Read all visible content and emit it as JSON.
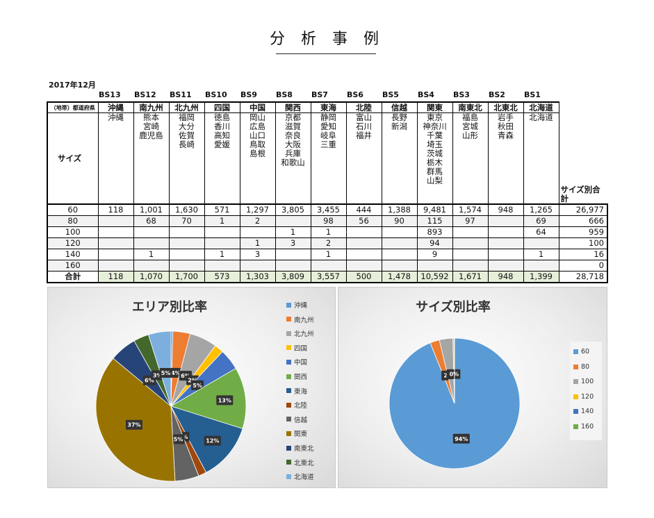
{
  "title": "分 析 事 例",
  "date": "2017年12月",
  "table": {
    "corner_label": "（地帯）都道府県",
    "size_label": "サイズ",
    "size_total_label": "サイズ別合計",
    "sum_label": "合計",
    "columns": [
      {
        "code": "BS13",
        "region": "沖縄",
        "prefectures": [
          "沖縄"
        ]
      },
      {
        "code": "BS12",
        "region": "南九州",
        "prefectures": [
          "熊本",
          "宮崎",
          "鹿児島"
        ]
      },
      {
        "code": "BS11",
        "region": "北九州",
        "prefectures": [
          "福岡",
          "大分",
          "佐賀",
          "長崎"
        ]
      },
      {
        "code": "BS10",
        "region": "四国",
        "prefectures": [
          "徳島",
          "香川",
          "高知",
          "愛媛"
        ]
      },
      {
        "code": "BS9",
        "region": "中国",
        "prefectures": [
          "岡山",
          "広島",
          "山口",
          "鳥取",
          "島根"
        ]
      },
      {
        "code": "BS8",
        "region": "関西",
        "prefectures": [
          "京都",
          "滋賀",
          "奈良",
          "大阪",
          "兵庫",
          "和歌山"
        ]
      },
      {
        "code": "BS7",
        "region": "東海",
        "prefectures": [
          "静岡",
          "愛知",
          "岐阜",
          "三重"
        ]
      },
      {
        "code": "BS6",
        "region": "北陸",
        "prefectures": [
          "富山",
          "石川",
          "福井"
        ]
      },
      {
        "code": "BS5",
        "region": "信越",
        "prefectures": [
          "長野",
          "新潟"
        ]
      },
      {
        "code": "BS4",
        "region": "関東",
        "prefectures": [
          "東京",
          "神奈川",
          "千葉",
          "埼玉",
          "茨城",
          "栃木",
          "群馬",
          "山梨"
        ]
      },
      {
        "code": "BS3",
        "region": "南東北",
        "prefectures": [
          "福島",
          "宮城",
          "山形"
        ]
      },
      {
        "code": "BS2",
        "region": "北東北",
        "prefectures": [
          "岩手",
          "秋田",
          "青森"
        ]
      },
      {
        "code": "BS1",
        "region": "北海道",
        "prefectures": [
          "北海道"
        ]
      }
    ],
    "rows": [
      {
        "size": "60",
        "values": [
          "118",
          "1,001",
          "1,630",
          "571",
          "1,297",
          "3,805",
          "3,455",
          "444",
          "1,388",
          "9,481",
          "1,574",
          "948",
          "1,265"
        ],
        "total": "26,977"
      },
      {
        "size": "80",
        "values": [
          "",
          "68",
          "70",
          "1",
          "2",
          "",
          "98",
          "56",
          "90",
          "115",
          "97",
          "",
          "69"
        ],
        "total": "666"
      },
      {
        "size": "100",
        "values": [
          "",
          "",
          "",
          "",
          "",
          "1",
          "1",
          "",
          "",
          "893",
          "",
          "",
          "64"
        ],
        "total": "959"
      },
      {
        "size": "120",
        "values": [
          "",
          "",
          "",
          "",
          "1",
          "3",
          "2",
          "",
          "",
          "94",
          "",
          "",
          ""
        ],
        "total": "100"
      },
      {
        "size": "140",
        "values": [
          "",
          "1",
          "",
          "1",
          "3",
          "",
          "1",
          "",
          "",
          "9",
          "",
          "",
          "1"
        ],
        "total": "16"
      },
      {
        "size": "160",
        "values": [
          "",
          "",
          "",
          "",
          "",
          "",
          "",
          "",
          "",
          "",
          "",
          "",
          ""
        ],
        "total": "0"
      }
    ],
    "sum": {
      "values": [
        "118",
        "1,070",
        "1,700",
        "573",
        "1,303",
        "3,809",
        "3,557",
        "500",
        "1,478",
        "10,592",
        "1,671",
        "948",
        "1,399"
      ],
      "total": "28,718"
    }
  },
  "area_chart": {
    "title": "エリア別比率",
    "type": "pie",
    "legend_position": "right",
    "slices": [
      {
        "name": "沖縄",
        "value": 118,
        "color": "#5b9bd5",
        "label": ""
      },
      {
        "name": "南九州",
        "value": 1070,
        "color": "#ed7d31",
        "label": "4%"
      },
      {
        "name": "北九州",
        "value": 1700,
        "color": "#a5a5a5",
        "label": "6%"
      },
      {
        "name": "四国",
        "value": 573,
        "color": "#ffc000",
        "label": "2%"
      },
      {
        "name": "中国",
        "value": 1303,
        "color": "#4472c4",
        "label": "5%"
      },
      {
        "name": "関西",
        "value": 3809,
        "color": "#70ad47",
        "label": "13%"
      },
      {
        "name": "東海",
        "value": 3557,
        "color": "#255e91",
        "label": "12%"
      },
      {
        "name": "北陸",
        "value": 500,
        "color": "#9e480e",
        "label": "%"
      },
      {
        "name": "信越",
        "value": 1478,
        "color": "#636363",
        "label": "5%"
      },
      {
        "name": "関東",
        "value": 10592,
        "color": "#997300",
        "label": "37%"
      },
      {
        "name": "南東北",
        "value": 1671,
        "color": "#264478",
        "label": "6%"
      },
      {
        "name": "北東北",
        "value": 948,
        "color": "#43682b",
        "label": "3%"
      },
      {
        "name": "北海道",
        "value": 1399,
        "color": "#7cafdd",
        "label": "5%"
      }
    ]
  },
  "size_chart": {
    "title": "サイズ別比率",
    "type": "pie",
    "legend_position": "right",
    "slices": [
      {
        "name": "60",
        "value": 26977,
        "color": "#5b9bd5",
        "label": "94%"
      },
      {
        "name": "80",
        "value": 666,
        "color": "#ed7d31",
        "label": "2"
      },
      {
        "name": "100",
        "value": 959,
        "color": "#a5a5a5",
        "label": "3"
      },
      {
        "name": "120",
        "value": 100,
        "color": "#ffc000",
        "label": "0%"
      },
      {
        "name": "140",
        "value": 16,
        "color": "#4472c4",
        "label": ""
      },
      {
        "name": "160",
        "value": 0,
        "color": "#70ad47",
        "label": ""
      }
    ]
  }
}
